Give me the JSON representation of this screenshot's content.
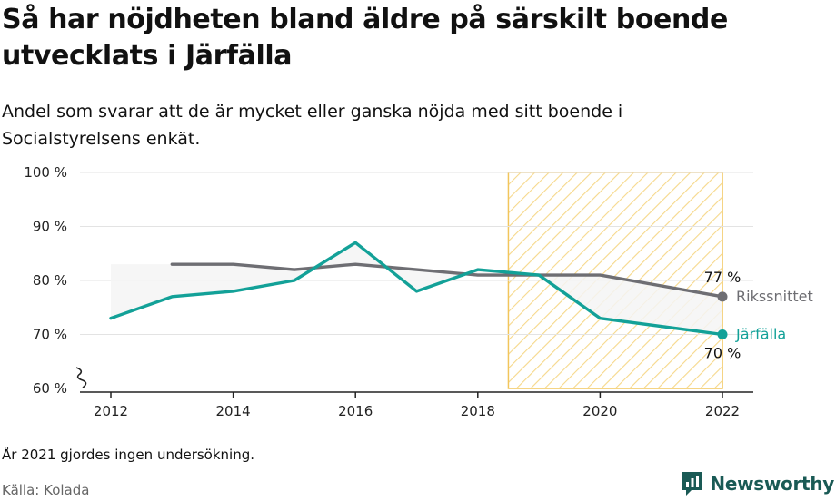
{
  "header": {
    "title": "Så har nöjdheten bland äldre på särskilt boende utvecklats i Järfälla",
    "subtitle": "Andel som svarar att de är mycket eller ganska nöjda med sitt boende i Socialstyrelsens enkät."
  },
  "footer": {
    "note": "År 2021 gjordes ingen undersökning.",
    "source": "Källa: Kolada",
    "brand": "Newsworthy"
  },
  "colors": {
    "jarfalla": "#13a198",
    "riks": "#6e6e73",
    "highlight_stroke": "#f2c55c",
    "highlight_hatch": "#f6d88a",
    "gap_fill": "#f4f4f4",
    "brand": "#1a5a55"
  },
  "chart_data": {
    "type": "line",
    "ylim": [
      60,
      100
    ],
    "xlim": [
      2011.5,
      2022.5
    ],
    "y_ticks": [
      60,
      70,
      80,
      90,
      100
    ],
    "y_tick_labels": [
      "60 %",
      "70 %",
      "80 %",
      "90 %",
      "100 %"
    ],
    "x_ticks": [
      2012,
      2014,
      2016,
      2018,
      2020,
      2022
    ],
    "x_tick_labels": [
      "2012",
      "2014",
      "2016",
      "2018",
      "2020",
      "2022"
    ],
    "axis_break": true,
    "grid": true,
    "highlight_range": [
      2018.5,
      2022
    ],
    "series": [
      {
        "name": "Rikssnittet",
        "color": "#6e6e73",
        "x": [
          2013,
          2014,
          2015,
          2016,
          2017,
          2018,
          2019,
          2020,
          2022
        ],
        "values": [
          83,
          83,
          82,
          83,
          82,
          81,
          81,
          81,
          77
        ],
        "end_value_label": "77 %"
      },
      {
        "name": "Järfälla",
        "color": "#13a198",
        "x": [
          2012,
          2013,
          2014,
          2015,
          2016,
          2017,
          2018,
          2019,
          2020,
          2022
        ],
        "values": [
          73,
          77,
          78,
          80,
          87,
          78,
          82,
          81,
          73,
          70
        ],
        "end_value_label": "70 %"
      }
    ]
  }
}
